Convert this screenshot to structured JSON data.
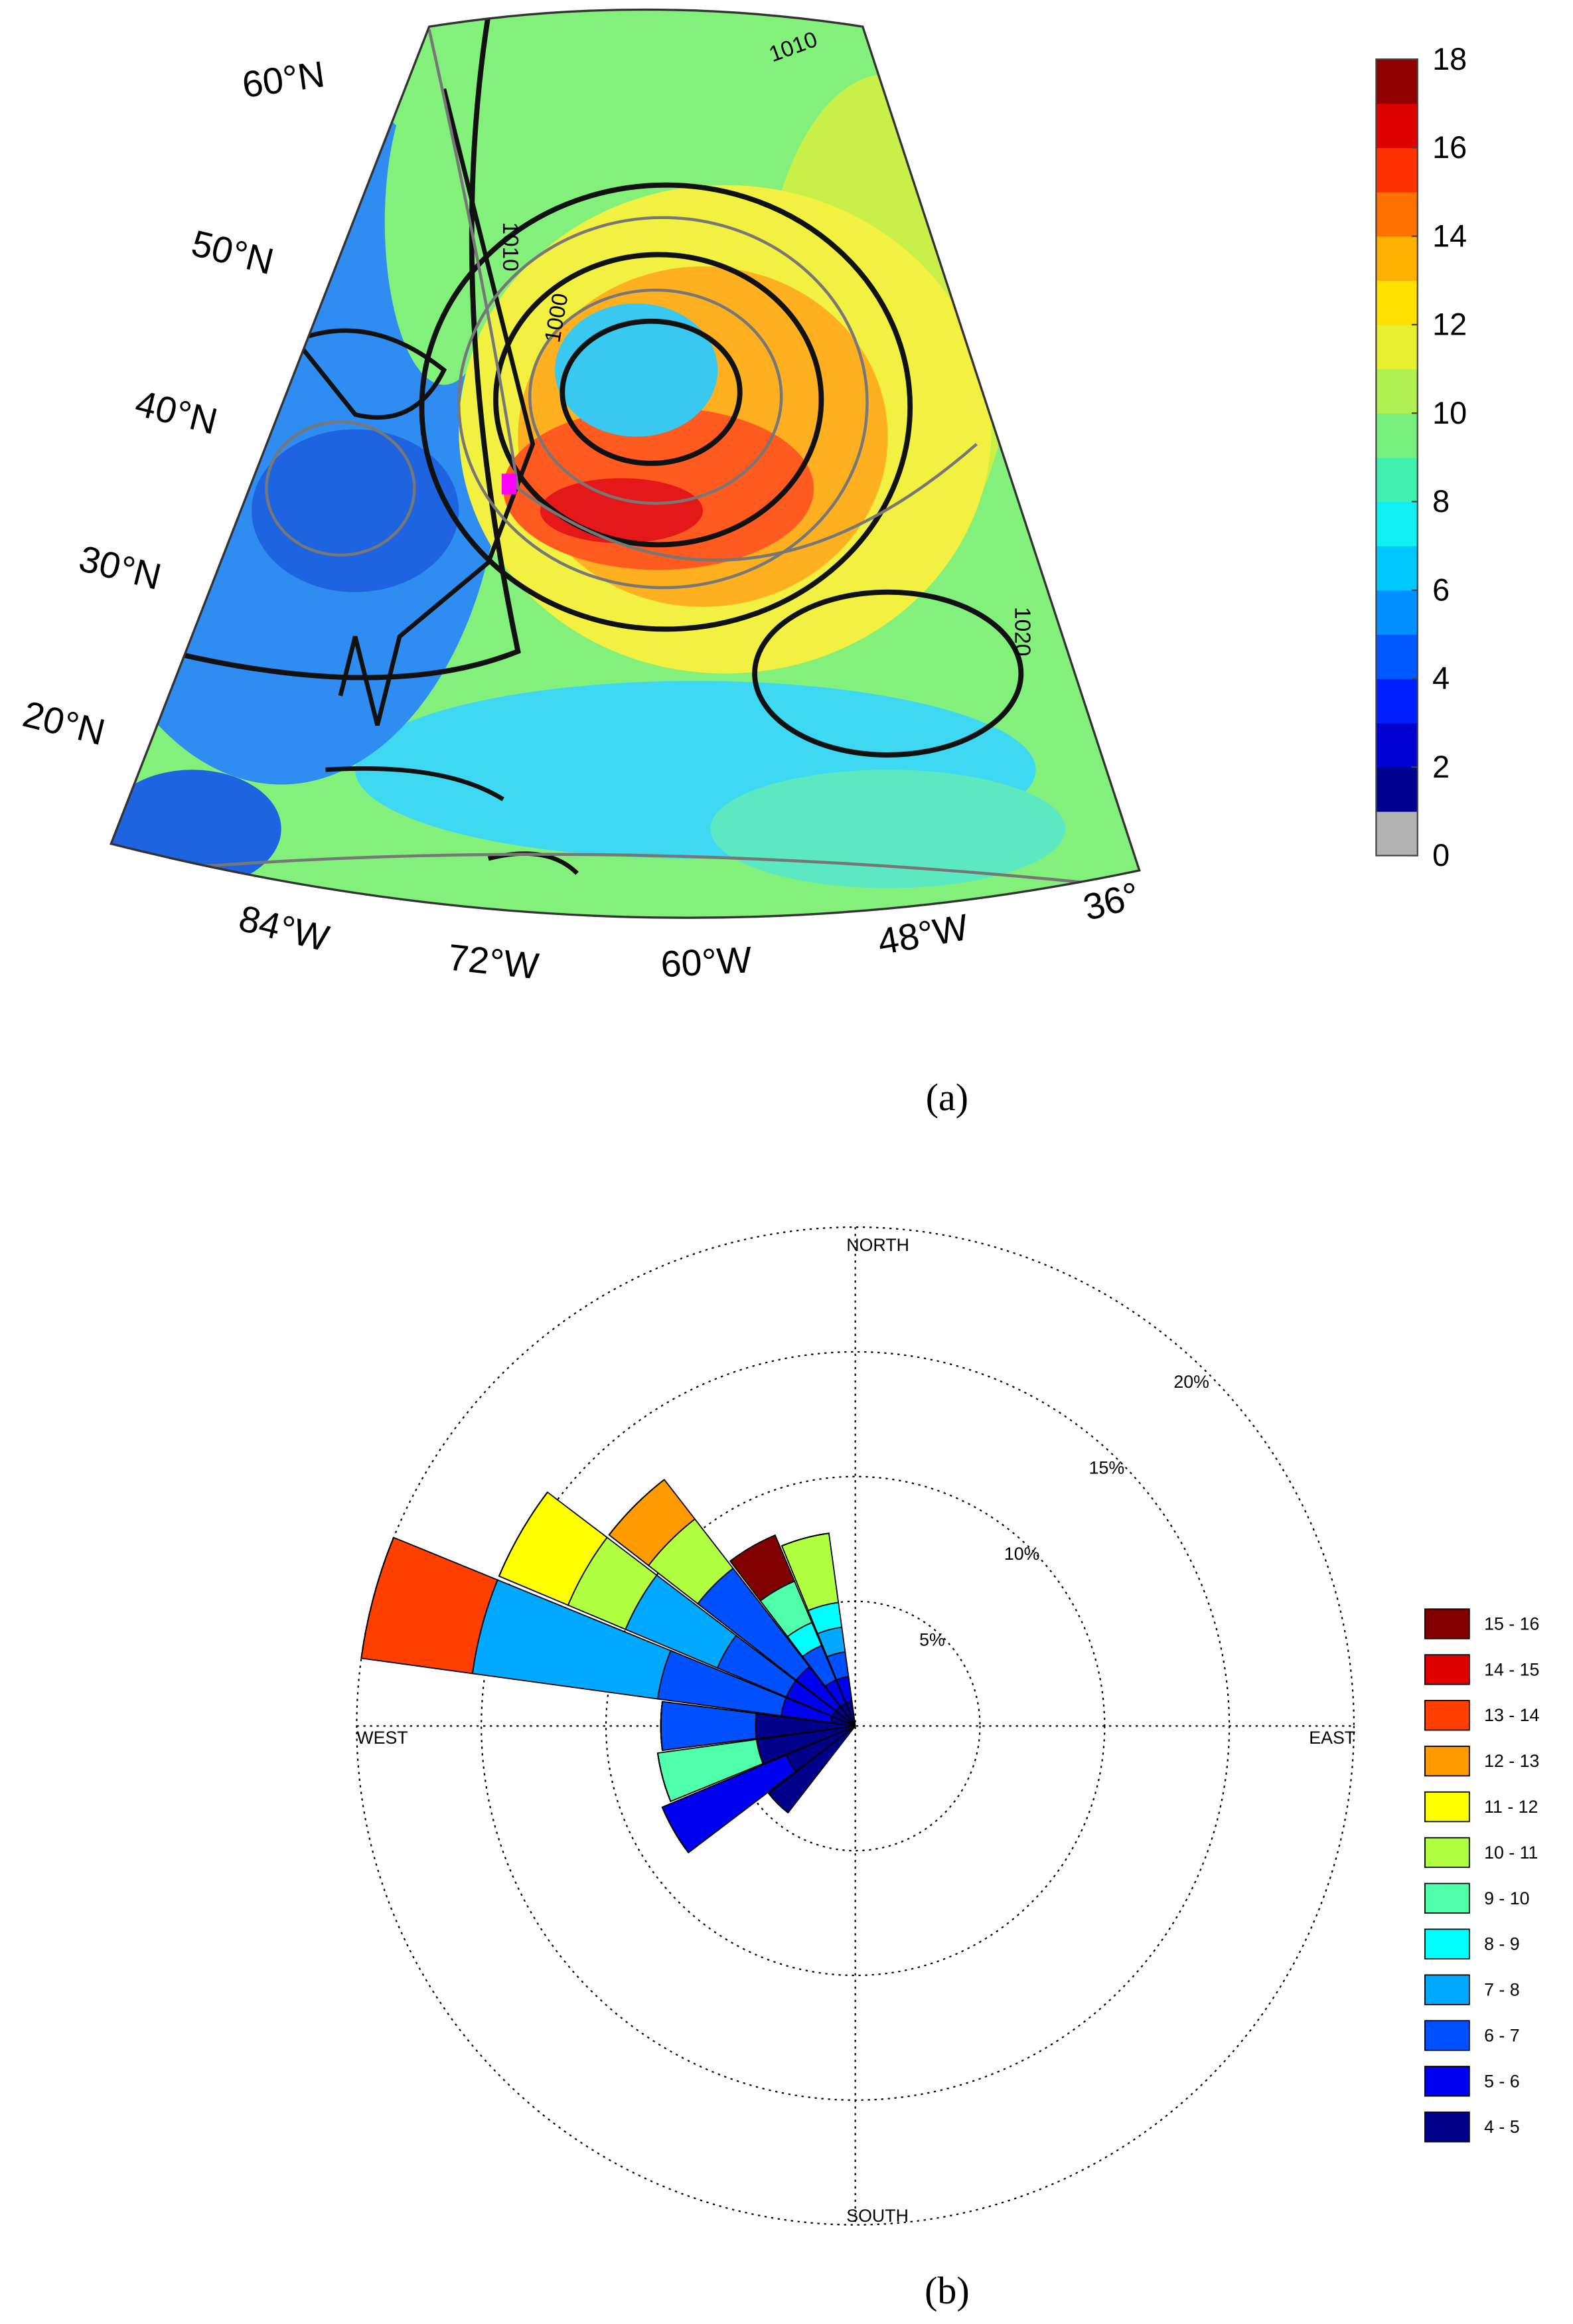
{
  "chart_data": [
    {
      "type": "map",
      "caption": "(a)",
      "lat_labels": [
        "60°N",
        "50°N",
        "40°N",
        "30°N",
        "20°N"
      ],
      "lon_labels": [
        "84°W",
        "72°W",
        "60°W",
        "48°W",
        "36°"
      ],
      "contour_labels": [
        "1010",
        "1010",
        "1000",
        "1020"
      ],
      "clim": [
        0,
        18
      ],
      "cticks": [
        0,
        2,
        4,
        6,
        8,
        10,
        12,
        14,
        16,
        18
      ],
      "colors": [
        "#b3b3b3",
        "#00008f",
        "#0000d0",
        "#0020ff",
        "#0058ff",
        "#0090ff",
        "#00c8ff",
        "#10f0f0",
        "#40f0b0",
        "#78f080",
        "#b0f050",
        "#e8f030",
        "#ffe000",
        "#ffb000",
        "#ff7000",
        "#ff3000",
        "#e00000",
        "#900000"
      ]
    },
    {
      "type": "windrose",
      "caption": "(b)",
      "directions": [
        "NORTH",
        "EAST",
        "SOUTH",
        "WEST"
      ],
      "x": [
        225,
        240,
        255,
        270,
        285,
        300,
        315,
        330,
        345
      ],
      "rlim": [
        0,
        20
      ],
      "rticks": [
        {
          "value": 5,
          "label": "5%"
        },
        {
          "value": 10,
          "label": "10%"
        },
        {
          "value": 15,
          "label": "15%"
        },
        {
          "value": 20,
          "label": "20%"
        }
      ],
      "legend": "right",
      "series": [
        {
          "name": "4 - 5",
          "color": "#00008b",
          "values": [
            4.4,
            3,
            4,
            4,
            1,
            1,
            1,
            1,
            1
          ]
        },
        {
          "name": "5 - 6",
          "color": "#0000f0",
          "values": [
            0,
            5.4,
            0,
            0,
            2,
            2,
            2,
            1,
            1
          ]
        },
        {
          "name": "6 - 7",
          "color": "#0050ff",
          "values": [
            0,
            0,
            0,
            3.8,
            5,
            3,
            5,
            1.5,
            1
          ]
        },
        {
          "name": "7 - 8",
          "color": "#00a8ff",
          "values": [
            0,
            0,
            0,
            0,
            7.5,
            4,
            0,
            0,
            1
          ]
        },
        {
          "name": "8 - 9",
          "color": "#00ffff",
          "values": [
            0,
            0,
            0,
            0,
            0,
            0,
            0,
            1,
            1
          ]
        },
        {
          "name": "9 - 10",
          "color": "#50ffaa",
          "values": [
            0,
            0,
            4,
            0,
            0,
            0,
            0,
            1.8,
            0
          ]
        },
        {
          "name": "10 - 11",
          "color": "#b0ff40",
          "values": [
            0,
            0,
            0,
            0,
            0,
            2.5,
            2.5,
            0,
            2.8
          ]
        },
        {
          "name": "11 - 12",
          "color": "#ffff00",
          "values": [
            0,
            0,
            0,
            0,
            0,
            3,
            0,
            0,
            0
          ]
        },
        {
          "name": "12 - 13",
          "color": "#ff9a00",
          "values": [
            0,
            0,
            0,
            0,
            0,
            0,
            2,
            0,
            0
          ]
        },
        {
          "name": "13 - 14",
          "color": "#ff4000",
          "values": [
            0,
            0,
            0,
            0,
            4.5,
            0,
            0,
            0,
            0
          ]
        },
        {
          "name": "14 - 15",
          "color": "#e00000",
          "values": [
            0,
            0,
            0,
            0,
            0,
            0,
            0,
            0,
            0
          ]
        },
        {
          "name": "15 - 16",
          "color": "#800000",
          "values": [
            0,
            0,
            0,
            0,
            0,
            0,
            0,
            2,
            0
          ]
        }
      ]
    }
  ]
}
